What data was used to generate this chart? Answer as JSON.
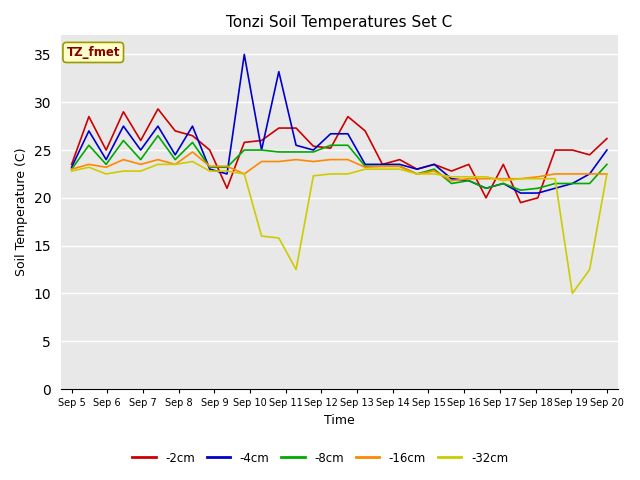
{
  "title": "Tonzi Soil Temperatures Set C",
  "xlabel": "Time",
  "ylabel": "Soil Temperature (C)",
  "ylim": [
    0,
    37
  ],
  "yticks": [
    0,
    5,
    10,
    15,
    20,
    25,
    30,
    35
  ],
  "x_labels": [
    "Sep 5",
    "Sep 6",
    "Sep 7",
    "Sep 8",
    "Sep 9",
    "Sep 10",
    "Sep 11",
    "Sep 12",
    "Sep 13",
    "Sep 14",
    "Sep 15",
    "Sep 16",
    "Sep 17",
    "Sep 18",
    "Sep 19",
    "Sep 20"
  ],
  "annotation_label": "TZ_fmet",
  "series": {
    "-2cm": {
      "color": "#cc0000",
      "values": [
        23.5,
        28.5,
        25.0,
        29.0,
        26.0,
        29.3,
        27.0,
        26.5,
        25.0,
        21.0,
        25.8,
        26.0,
        27.3,
        27.3,
        25.4,
        25.2,
        28.5,
        27.0,
        23.5,
        24.0,
        23.0,
        23.5,
        22.8,
        23.5,
        20.0,
        23.5,
        19.5,
        20.0,
        25.0,
        25.0,
        24.5,
        26.2
      ]
    },
    "-4cm": {
      "color": "#0000cc",
      "values": [
        23.2,
        27.0,
        24.0,
        27.5,
        25.0,
        27.5,
        24.5,
        27.5,
        23.0,
        22.5,
        35.0,
        25.0,
        33.2,
        25.5,
        25.0,
        26.7,
        26.7,
        23.5,
        23.5,
        23.5,
        23.0,
        23.5,
        22.0,
        21.8,
        21.0,
        21.5,
        20.5,
        20.5,
        21.0,
        21.5,
        22.5,
        25.0
      ]
    },
    "-8cm": {
      "color": "#00aa00",
      "values": [
        23.0,
        25.5,
        23.5,
        26.0,
        24.0,
        26.5,
        24.0,
        25.8,
        23.2,
        23.2,
        25.0,
        25.0,
        24.8,
        24.8,
        24.8,
        25.5,
        25.5,
        23.3,
        23.3,
        23.3,
        22.5,
        23.0,
        21.5,
        21.8,
        21.0,
        21.5,
        20.8,
        21.0,
        21.5,
        21.5,
        21.5,
        23.5
      ]
    },
    "-16cm": {
      "color": "#ff8800",
      "values": [
        23.0,
        23.5,
        23.2,
        24.0,
        23.5,
        24.0,
        23.5,
        24.8,
        23.3,
        23.3,
        22.5,
        23.8,
        23.8,
        24.0,
        23.8,
        24.0,
        24.0,
        23.2,
        23.3,
        23.3,
        22.5,
        22.8,
        21.8,
        22.0,
        22.0,
        22.0,
        22.0,
        22.2,
        22.5,
        22.5,
        22.5,
        22.5
      ]
    },
    "-32cm": {
      "color": "#cccc00",
      "values": [
        22.8,
        23.2,
        22.5,
        22.8,
        22.8,
        23.5,
        23.5,
        23.8,
        22.8,
        22.8,
        22.5,
        16.0,
        15.8,
        12.5,
        22.3,
        22.5,
        22.5,
        23.0,
        23.0,
        23.0,
        22.5,
        22.5,
        22.2,
        22.2,
        22.2,
        21.8,
        22.0,
        22.0,
        22.0,
        10.0,
        12.5,
        22.5
      ]
    }
  },
  "background_color": "#e8e8e8",
  "plot_bg_color": "#e8e8e8",
  "annotation_box_color": "#ffffcc",
  "annotation_text_color": "#880000",
  "grid_color": "#ffffff",
  "figsize": [
    6.4,
    4.8
  ],
  "dpi": 100
}
